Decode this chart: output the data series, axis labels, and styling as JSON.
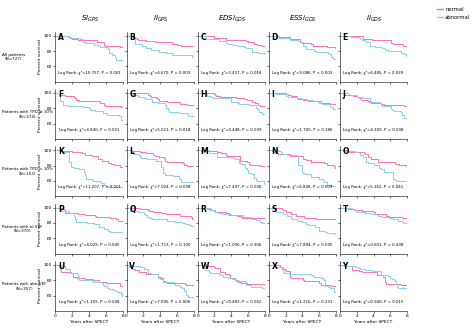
{
  "col_titles": [
    "$SI_{GPS}$",
    "$II_{GPS}$",
    "$EDSi_{GDS}$",
    "$ESSi_{GDS}$",
    "$II_{GDS}$"
  ],
  "panel_letters": [
    [
      "A",
      "B",
      "C",
      "D",
      "E"
    ],
    [
      "F",
      "G",
      "H",
      "I",
      "J"
    ],
    [
      "K",
      "L",
      "M",
      "N",
      "O"
    ],
    [
      "P",
      "Q",
      "R",
      "S",
      "T"
    ],
    [
      "U",
      "V",
      "W",
      "X",
      "Y"
    ]
  ],
  "row_labels": [
    "All patients\n(N=727)",
    "Patients with TPD ≥ 10%\n(N=374)",
    "Patients with TPD < 10%\n(N=153)",
    "Patients with nl-VEF\n(N=370)",
    "Patients with abn-VEF\n(N=357)"
  ],
  "log_rank_texts": [
    [
      "Log Rank: χ²=10.757, P = 0.001",
      "Log Rank: χ²=6.670, P = 0.003",
      "Log Rank: χ²=3.437, P = 0.018",
      "Log Rank: χ²=9.086, P = 0.003",
      "Log Rank: χ²=6.485, P = 0.039"
    ],
    [
      "Log Rank: χ²=4.840, P = 0.031",
      "Log Rank: χ²=5.021, P = 0.018",
      "Log Rank: χ²=4.448, P = 0.009",
      "Log Rank: χ²=1.700, P = 0.186",
      "Log Rank: χ²=4.309, P = 0.038"
    ],
    [
      "Log Rank: χ²=11.207, P = 0.001",
      "Log Rank: χ²=7.024, P = 0.008",
      "Log Rank: χ²=7.497, P = 0.006",
      "Log Rank: χ²=6.848, P = 0.009",
      "Log Rank: χ²=5.162, P = 0.041"
    ],
    [
      "Log Rank: χ²=4.029, P = 0.045",
      "Log Rank: χ²=1.713, P = 0.100",
      "Log Rank: χ²=1.006, P = 0.306",
      "Log Rank: χ²=7.894, P = 0.005",
      "Log Rank: χ²=0.601, P = 0.438"
    ],
    [
      "Log Rank: χ²=1.309, P = 0.008",
      "Log Rank: χ²=7.695, P = 0.006",
      "Log Rank: χ²=0.483, P = 0.062",
      "Log Rank: χ²=1.216, P = 0.231",
      "Log Rank: χ²=0.940, P = 0.015"
    ]
  ],
  "color_normal": "#FF69B4",
  "color_abnormal": "#87CEEB",
  "xlabel": "Years after SPECT",
  "ylabel": "Percent survival",
  "normal_end": [
    [
      85,
      86,
      87,
      84,
      86
    ],
    [
      82,
      84,
      83,
      85,
      83
    ],
    [
      78,
      80,
      79,
      77,
      80
    ],
    [
      83,
      85,
      86,
      84,
      86
    ],
    [
      72,
      74,
      75,
      73,
      74
    ]
  ],
  "abnormal_end": [
    [
      68,
      72,
      76,
      70,
      74
    ],
    [
      65,
      70,
      72,
      75,
      68
    ],
    [
      52,
      58,
      56,
      54,
      60
    ],
    [
      68,
      76,
      80,
      66,
      80
    ],
    [
      55,
      58,
      70,
      64,
      66
    ]
  ]
}
